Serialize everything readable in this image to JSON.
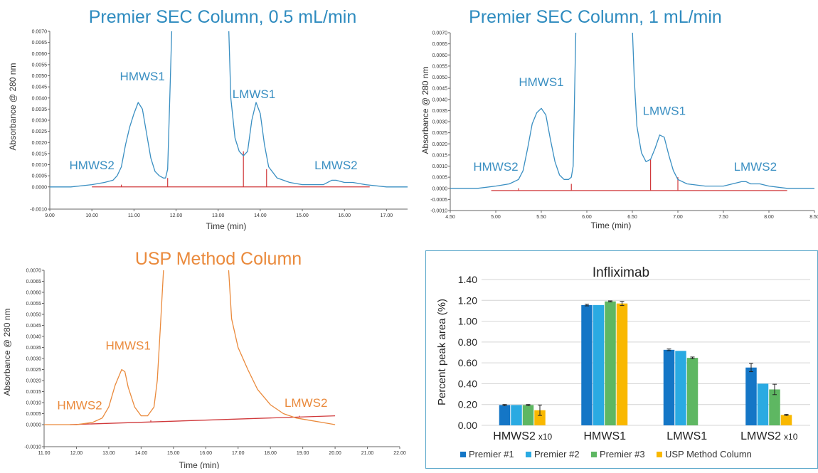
{
  "chart_data": [
    {
      "type": "line",
      "title": "Premier SEC Column, 0.5 mL/min",
      "xlabel": "Time (min)",
      "ylabel": "Absorbance @ 280 nm",
      "xlim": [
        9.0,
        17.5
      ],
      "ylim": [
        -0.001,
        0.007
      ],
      "xticks": [
        "9.00",
        "10.00",
        "11.00",
        "12.00",
        "13.00",
        "14.00",
        "15.00",
        "16.00",
        "17.00"
      ],
      "xtick_values": [
        9,
        10,
        11,
        12,
        13,
        14,
        15,
        16,
        17
      ],
      "yticks": [
        "-0.0010",
        "0.0000",
        "0.0005",
        "0.0010",
        "0.0015",
        "0.0020",
        "0.0025",
        "0.0030",
        "0.0035",
        "0.0040",
        "0.0045",
        "0.0050",
        "0.0055",
        "0.0060",
        "0.0065",
        "0.0070"
      ],
      "ytick_values": [
        -0.001,
        0.0,
        0.0005,
        0.001,
        0.0015,
        0.002,
        0.0025,
        0.003,
        0.0035,
        0.004,
        0.0045,
        0.005,
        0.0055,
        0.006,
        0.0065,
        0.007
      ],
      "color": "#3a8fc2",
      "baseline_color": "#d0393b",
      "series": [
        {
          "x": [
            9.0,
            9.5,
            10.0,
            10.3,
            10.5,
            10.6,
            10.7,
            10.8,
            10.9,
            11.0,
            11.1,
            11.2,
            11.3,
            11.4,
            11.5,
            11.6,
            11.7,
            11.75,
            11.8,
            11.85,
            11.9,
            13.25,
            13.3,
            13.4,
            13.5,
            13.6,
            13.7,
            13.8,
            13.9,
            14.0,
            14.1,
            14.2,
            14.4,
            14.7,
            15.0,
            15.5,
            15.7,
            15.8,
            16.0,
            16.2,
            16.5,
            17.0,
            17.5
          ],
          "y": [
            0.0,
            0.0,
            0.0001,
            0.0002,
            0.0003,
            0.0005,
            0.0009,
            0.0019,
            0.0027,
            0.0033,
            0.0038,
            0.0035,
            0.0024,
            0.0013,
            0.0007,
            0.0005,
            0.0004,
            0.0004,
            0.0008,
            0.004,
            0.0072,
            0.0072,
            0.004,
            0.0022,
            0.0016,
            0.0014,
            0.0016,
            0.003,
            0.0038,
            0.0033,
            0.0019,
            0.0009,
            0.0004,
            0.0002,
            0.0001,
            0.0001,
            0.0003,
            0.0003,
            0.0002,
            0.0002,
            0.0001,
            0.0,
            0.0
          ]
        }
      ],
      "baseline": {
        "x": [
          10.0,
          16.6
        ],
        "y": [
          0.0,
          0.0
        ]
      },
      "markers": [
        {
          "x": 10.7,
          "y": 0.0001
        },
        {
          "x": 11.8,
          "y": 0.0004
        },
        {
          "x": 13.6,
          "y": 0.0016
        },
        {
          "x": 14.15,
          "y": 0.0008
        }
      ],
      "annotations": [
        {
          "text": "HMWS2",
          "x": 10.0,
          "y": 0.0008
        },
        {
          "text": "HMWS1",
          "x": 11.2,
          "y": 0.0048
        },
        {
          "text": "LMWS1",
          "x": 13.85,
          "y": 0.004
        },
        {
          "text": "LMWS2",
          "x": 15.8,
          "y": 0.0008
        }
      ]
    },
    {
      "type": "line",
      "title": "Premier SEC Column, 1 mL/min",
      "xlabel": "Time (min)",
      "ylabel": "Absorbance @ 280 nm",
      "xlim": [
        4.5,
        8.5
      ],
      "ylim": [
        -0.001,
        0.007
      ],
      "xticks": [
        "4.50",
        "5.00",
        "5.50",
        "6.00",
        "6.50",
        "7.00",
        "7.50",
        "8.00",
        "8.50"
      ],
      "xtick_values": [
        4.5,
        5.0,
        5.5,
        6.0,
        6.5,
        7.0,
        7.5,
        8.0,
        8.5
      ],
      "yticks": [
        "-0.0010",
        "-0.0005",
        "0.0000",
        "0.0005",
        "0.0010",
        "0.0015",
        "0.0020",
        "0.0025",
        "0.0030",
        "0.0035",
        "0.0040",
        "0.0045",
        "0.0050",
        "0.0055",
        "0.0060",
        "0.0065",
        "0.0070"
      ],
      "ytick_values": [
        -0.001,
        -0.0005,
        0.0,
        0.0005,
        0.001,
        0.0015,
        0.002,
        0.0025,
        0.003,
        0.0035,
        0.004,
        0.0045,
        0.005,
        0.0055,
        0.006,
        0.0065,
        0.007
      ],
      "color": "#3a8fc2",
      "baseline_color": "#d0393b",
      "series": [
        {
          "x": [
            4.5,
            4.8,
            5.0,
            5.15,
            5.25,
            5.3,
            5.35,
            5.4,
            5.45,
            5.5,
            5.55,
            5.6,
            5.65,
            5.7,
            5.75,
            5.8,
            5.83,
            5.85,
            5.88,
            6.5,
            6.52,
            6.55,
            6.6,
            6.65,
            6.7,
            6.75,
            6.8,
            6.85,
            6.9,
            6.95,
            7.0,
            7.1,
            7.3,
            7.5,
            7.7,
            7.75,
            7.8,
            7.9,
            8.0,
            8.2,
            8.5
          ],
          "y": [
            0.0,
            0.0,
            0.0001,
            0.0002,
            0.0004,
            0.0008,
            0.0018,
            0.0029,
            0.0034,
            0.0036,
            0.0033,
            0.0022,
            0.0012,
            0.0006,
            0.0004,
            0.0004,
            0.0005,
            0.001,
            0.0072,
            0.0072,
            0.005,
            0.0028,
            0.0016,
            0.0012,
            0.0013,
            0.0018,
            0.0024,
            0.0023,
            0.0015,
            0.0008,
            0.0004,
            0.0002,
            0.0001,
            0.0001,
            0.0003,
            0.0003,
            0.0002,
            0.0002,
            0.0001,
            0.0,
            0.0
          ]
        }
      ],
      "baseline": {
        "x": [
          4.95,
          8.2
        ],
        "y": [
          -0.0001,
          -0.0001
        ]
      },
      "markers": [
        {
          "x": 5.25,
          "y": 0.0
        },
        {
          "x": 5.83,
          "y": 0.0002
        },
        {
          "x": 6.7,
          "y": 0.0013
        },
        {
          "x": 7.0,
          "y": 0.0005
        }
      ],
      "annotations": [
        {
          "text": "HMWS2",
          "x": 5.0,
          "y": 0.0008
        },
        {
          "text": "HMWS1",
          "x": 5.5,
          "y": 0.0046
        },
        {
          "text": "LMWS1",
          "x": 6.85,
          "y": 0.0033
        },
        {
          "text": "LMWS2",
          "x": 7.85,
          "y": 0.0008
        }
      ]
    },
    {
      "type": "line",
      "title": "USP Method Column",
      "xlabel": "Time (min)",
      "ylabel": "Absorbance @ 280 nm",
      "xlim": [
        11.0,
        22.0
      ],
      "ylim": [
        -0.001,
        0.007
      ],
      "xticks": [
        "11.00",
        "12.00",
        "13.00",
        "14.00",
        "15.00",
        "16.00",
        "17.00",
        "18.00",
        "19.00",
        "20.00",
        "21.00",
        "22.00"
      ],
      "xtick_values": [
        11,
        12,
        13,
        14,
        15,
        16,
        17,
        18,
        19,
        20,
        21,
        22
      ],
      "yticks": [
        "-0.0010",
        "0.0000",
        "0.0005",
        "0.0010",
        "0.0015",
        "0.0020",
        "0.0025",
        "0.0030",
        "0.0035",
        "0.0040",
        "0.0045",
        "0.0050",
        "0.0055",
        "0.0060",
        "0.0065",
        "0.0070"
      ],
      "ytick_values": [
        -0.001,
        0.0,
        0.0005,
        0.001,
        0.0015,
        0.002,
        0.0025,
        0.003,
        0.0035,
        0.004,
        0.0045,
        0.005,
        0.0055,
        0.006,
        0.0065,
        0.007
      ],
      "color": "#ea8a3c",
      "baseline_color": "#d0393b",
      "series": [
        {
          "x": [
            11.0,
            12.0,
            12.5,
            12.8,
            13.0,
            13.2,
            13.4,
            13.5,
            13.6,
            13.8,
            14.0,
            14.2,
            14.4,
            14.5,
            14.6,
            14.7,
            16.7,
            16.8,
            17.0,
            17.3,
            17.6,
            18.0,
            18.4,
            18.8,
            19.2,
            19.6,
            20.0
          ],
          "y": [
            0.0,
            0.0,
            0.0001,
            0.0003,
            0.0008,
            0.0018,
            0.0025,
            0.0024,
            0.0017,
            0.0008,
            0.0004,
            0.0004,
            0.0008,
            0.002,
            0.0045,
            0.0072,
            0.0072,
            0.0048,
            0.0035,
            0.0025,
            0.0016,
            0.0009,
            0.0005,
            0.0003,
            0.0002,
            0.0001,
            0.0
          ]
        }
      ],
      "baseline": {
        "x": [
          11.8,
          20.0
        ],
        "y": [
          0.0,
          0.0004
        ]
      },
      "markers": [
        {
          "x": 12.55,
          "y": 5e-05
        },
        {
          "x": 14.3,
          "y": 0.0002
        },
        {
          "x": 18.9,
          "y": 0.0004
        }
      ],
      "annotations": [
        {
          "text": "HMWS2",
          "x": 12.1,
          "y": 0.0007
        },
        {
          "text": "HMWS1",
          "x": 13.6,
          "y": 0.0034
        },
        {
          "text": "LMWS2",
          "x": 19.1,
          "y": 0.0008
        }
      ]
    },
    {
      "type": "bar",
      "title": "Infliximab",
      "xlabel": "",
      "ylabel": "Percent peak area (%)",
      "ylim": [
        0.0,
        1.4
      ],
      "yticks": [
        "0.00",
        "0.20",
        "0.40",
        "0.60",
        "0.80",
        "1.00",
        "1.20",
        "1.40"
      ],
      "ytick_values": [
        0.0,
        0.2,
        0.4,
        0.6,
        0.8,
        1.0,
        1.2,
        1.4
      ],
      "grid": true,
      "legend": "bottom",
      "categories": [
        "HMWS2",
        "HMWS1",
        "LMWS1",
        "LMWS2"
      ],
      "category_suffix": [
        "x10",
        "",
        "",
        "x10"
      ],
      "series": [
        {
          "name": "Premier #1",
          "color": "#1476c6",
          "values": [
            0.195,
            1.155,
            0.725,
            0.555
          ],
          "errors": [
            0.005,
            0.008,
            0.008,
            0.04
          ]
        },
        {
          "name": "Premier #2",
          "color": "#2aaae2",
          "values": [
            0.195,
            1.155,
            0.715,
            0.4
          ],
          "errors": [
            0.0,
            0.0,
            0.0,
            0.0
          ]
        },
        {
          "name": "Premier #3",
          "color": "#5eb762",
          "values": [
            0.195,
            1.19,
            0.648,
            0.345
          ],
          "errors": [
            0.005,
            0.005,
            0.008,
            0.05
          ]
        },
        {
          "name": "USP Method Column",
          "color": "#f9b800",
          "values": [
            0.145,
            1.17,
            null,
            0.1
          ],
          "errors": [
            0.05,
            0.02,
            0.0,
            0.005
          ]
        }
      ]
    }
  ]
}
